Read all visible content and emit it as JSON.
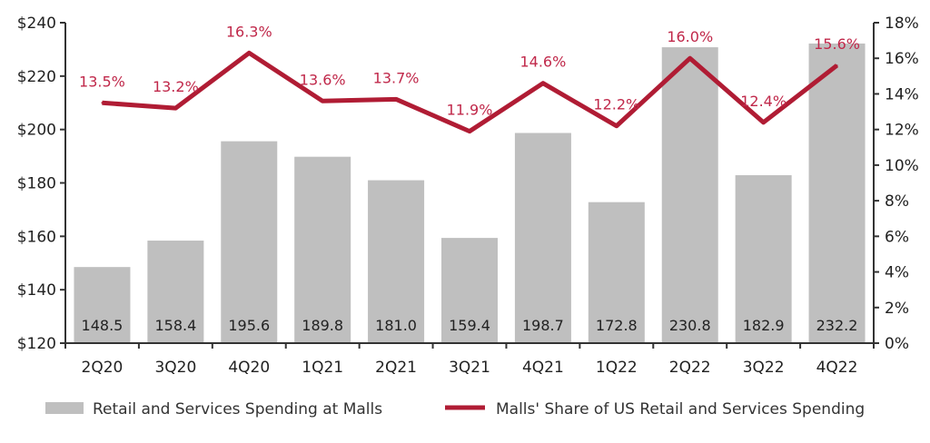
{
  "chart_data": {
    "type": "bar+line",
    "categories": [
      "2Q20",
      "3Q20",
      "4Q20",
      "1Q21",
      "2Q21",
      "3Q21",
      "4Q21",
      "1Q22",
      "2Q22",
      "3Q22",
      "4Q22"
    ],
    "series": [
      {
        "name": "Retail and Services Spending at Malls",
        "type": "bar",
        "axis": "left",
        "values": [
          148.5,
          158.4,
          195.6,
          189.8,
          181.0,
          159.4,
          198.7,
          172.8,
          230.8,
          182.9,
          232.2
        ],
        "labels": [
          "148.5",
          "158.4",
          "195.6",
          "189.8",
          "181.0",
          "159.4",
          "198.7",
          "172.8",
          "230.8",
          "182.9",
          "232.2"
        ],
        "color": "#bfbfbf"
      },
      {
        "name": "Malls' Share of US Retail and Services Spending",
        "type": "line",
        "axis": "right",
        "values": [
          13.5,
          13.2,
          16.3,
          13.6,
          13.7,
          11.9,
          14.6,
          12.2,
          16.0,
          12.4,
          15.6
        ],
        "labels": [
          "13.5%",
          "13.2%",
          "16.3%",
          "13.6%",
          "13.7%",
          "11.9%",
          "14.6%",
          "12.2%",
          "16.0%",
          "12.4%",
          "15.6%"
        ],
        "color": "#b01c34"
      }
    ],
    "left_axis": {
      "ylim": [
        120,
        240
      ],
      "ticks": [
        "$120",
        "$140",
        "$160",
        "$180",
        "$200",
        "$220",
        "$240"
      ]
    },
    "right_axis": {
      "ylim": [
        0,
        18
      ],
      "ticks": [
        "0%",
        "2%",
        "4%",
        "6%",
        "8%",
        "10%",
        "12%",
        "14%",
        "16%",
        "18%"
      ]
    },
    "grid": false,
    "legend": "bottom"
  }
}
